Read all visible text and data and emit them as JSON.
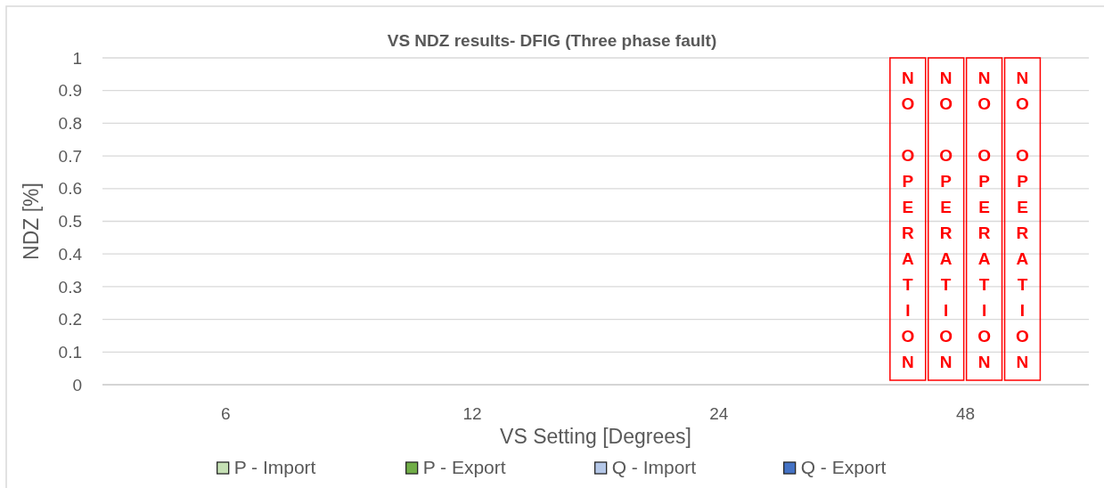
{
  "chart_data": {
    "type": "bar",
    "title": "VS NDZ results- DFIG (Three phase fault)",
    "xlabel": "VS Setting [Degrees]",
    "ylabel": "NDZ [%]",
    "categories": [
      "6",
      "12",
      "24",
      "48"
    ],
    "series": [
      {
        "name": "P - Import",
        "color": "#c5e0b4",
        "values": [
          0,
          0,
          0,
          null
        ],
        "value_labels": [
          null,
          null,
          null,
          "NO OPERATION"
        ]
      },
      {
        "name": "P - Export",
        "color": "#70ad47",
        "values": [
          0,
          0,
          0,
          null
        ],
        "value_labels": [
          null,
          null,
          null,
          "NO OPERATION"
        ]
      },
      {
        "name": "Q - Import",
        "color": "#b4c7e7",
        "values": [
          0,
          0,
          0,
          null
        ],
        "value_labels": [
          null,
          null,
          null,
          "NO OPERATION"
        ]
      },
      {
        "name": "Q - Export",
        "color": "#4472c4",
        "values": [
          0,
          0,
          0,
          null
        ],
        "value_labels": [
          null,
          null,
          null,
          "NO OPERATION"
        ]
      }
    ],
    "ylim": [
      0,
      1
    ],
    "yticks": [
      0,
      0.1,
      0.2,
      0.3,
      0.4,
      0.5,
      0.6,
      0.7,
      0.8,
      0.9,
      1
    ],
    "grid": "y",
    "legend": "bottom"
  }
}
